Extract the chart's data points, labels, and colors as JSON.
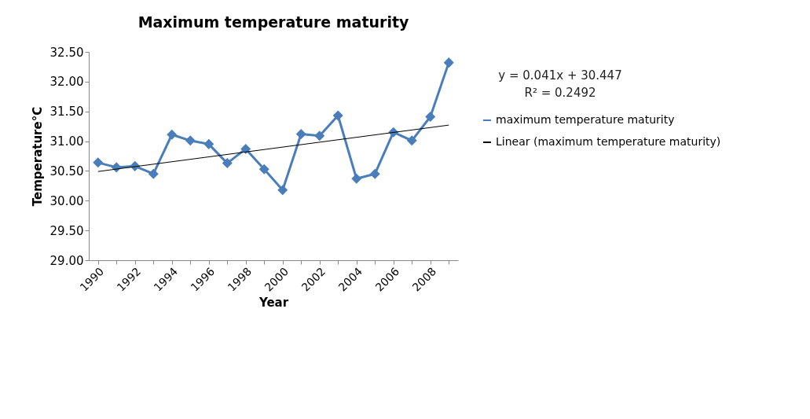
{
  "chart_data": {
    "type": "line",
    "title": "Maximum  temperature maturity",
    "xlabel": "Year",
    "ylabel": "Temperature°C",
    "x": [
      1990,
      1991,
      1992,
      1993,
      1994,
      1995,
      1996,
      1997,
      1998,
      1999,
      2000,
      2001,
      2002,
      2003,
      2004,
      2005,
      2006,
      2007,
      2008,
      2009
    ],
    "series": [
      {
        "name": "maximum temperature maturity",
        "color": "#4a7ebb",
        "marker": "diamond",
        "values": [
          30.64,
          30.56,
          30.58,
          30.45,
          31.11,
          31.01,
          30.95,
          30.63,
          30.87,
          30.53,
          30.18,
          31.12,
          31.09,
          31.43,
          30.37,
          30.45,
          31.15,
          31.01,
          31.41,
          32.32
        ]
      },
      {
        "name": "Linear (maximum temperature maturity)",
        "color": "#000000",
        "type": "line",
        "marker": "none",
        "x": [
          1990,
          2009
        ],
        "values": [
          30.49,
          31.27
        ]
      }
    ],
    "xlim": [
      1989.5,
      2009.5
    ],
    "xticks": [
      1990,
      {
        "value": 1991,
        "label": null
      },
      1992,
      {
        "value": 1993,
        "label": null
      },
      1994,
      {
        "value": 1995,
        "label": null
      },
      1996,
      {
        "value": 1997,
        "label": null
      },
      1998,
      {
        "value": 1999,
        "label": null
      },
      2000,
      {
        "value": 2001,
        "label": null
      },
      2002,
      {
        "value": 2003,
        "label": null
      },
      2004,
      {
        "value": 2005,
        "label": null
      },
      2006,
      {
        "value": 2007,
        "label": null
      },
      2008,
      {
        "value": 2009,
        "label": null
      }
    ],
    "ylim": [
      29.0,
      32.5
    ],
    "yticks": [
      {
        "value": 29.0,
        "label": "29.00"
      },
      {
        "value": 29.5,
        "label": "29.50"
      },
      {
        "value": 30.0,
        "label": "30.00"
      },
      {
        "value": 30.5,
        "label": "30.50"
      },
      {
        "value": 31.0,
        "label": "31.00"
      },
      {
        "value": 31.5,
        "label": "31.50"
      },
      {
        "value": 32.0,
        "label": "32.00"
      },
      {
        "value": 32.5,
        "label": "32.50"
      }
    ],
    "annotations": [
      "y = 0.041x + 30.447",
      "R² = 0.2492"
    ],
    "grid": false,
    "legend": "right",
    "line_style": "solid"
  }
}
